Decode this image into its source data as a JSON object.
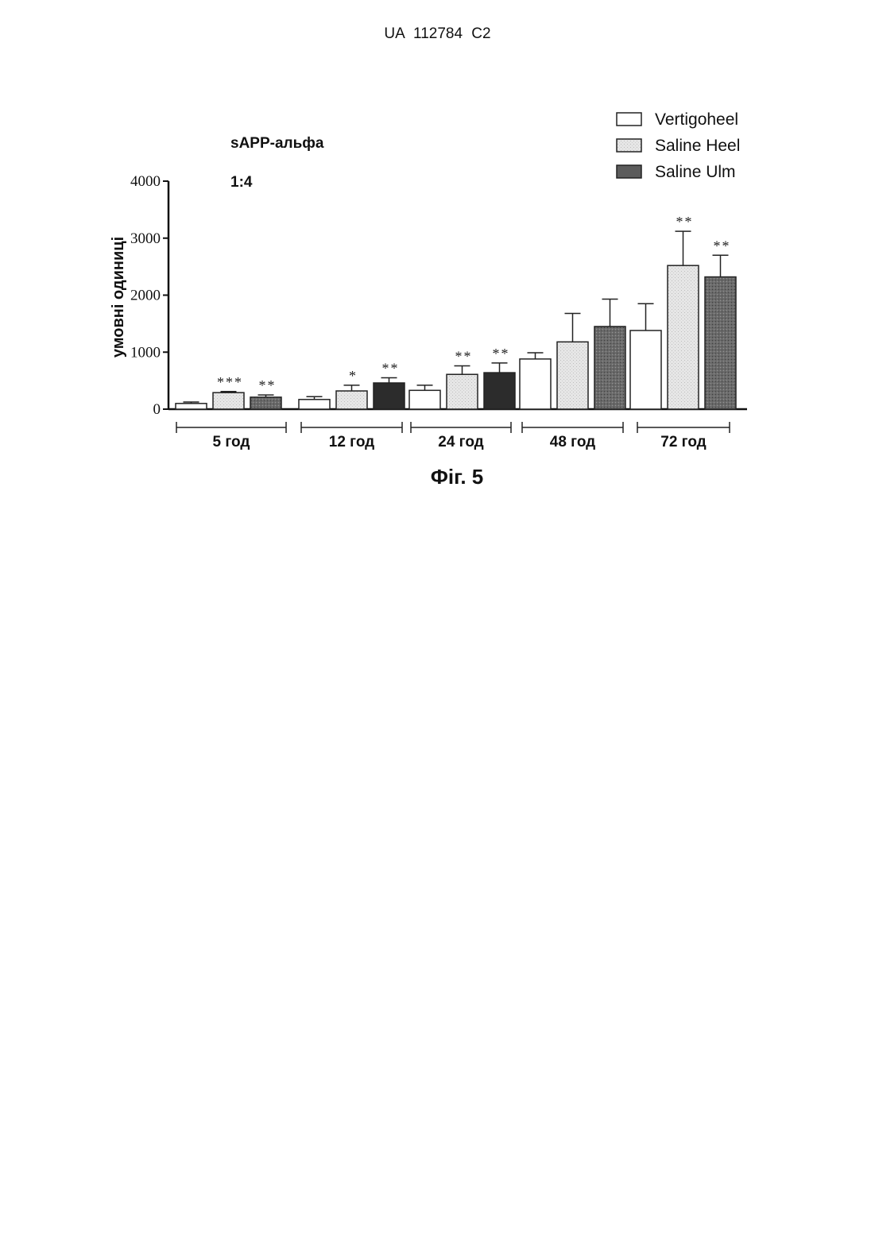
{
  "header": {
    "doc_id": "UA   112784   C2"
  },
  "caption": "Фіг. 5",
  "colors": {
    "Vertigoheel": "#ffffff",
    "Saline Heel": "#e3e3e3",
    "Saline Ulm": "#5c5c5c",
    "Saline Ulm (12/24 год)": "#2c2c2c",
    "axis": "#111111"
  },
  "chart_data": {
    "type": "bar",
    "title": "sAPP-альфа",
    "subtitle": "1:4",
    "ylabel": "умовні одиниці",
    "xlabel": "",
    "ylim": [
      0,
      4000
    ],
    "yticks": [
      "0",
      "1000",
      "2000",
      "3000",
      "4000"
    ],
    "categories": [
      "5 год",
      "12 год",
      "24 год",
      "48 год",
      "72 год"
    ],
    "legend_position": "top-right",
    "series": [
      {
        "name": "Vertigoheel",
        "values": [
          100,
          170,
          330,
          880,
          1380
        ],
        "errors": [
          25,
          50,
          90,
          110,
          470
        ],
        "annotations": [
          "",
          "",
          "",
          "",
          ""
        ]
      },
      {
        "name": "Saline Heel",
        "values": [
          290,
          320,
          610,
          1180,
          2520
        ],
        "errors": [
          20,
          100,
          150,
          500,
          600
        ],
        "annotations": [
          "***",
          "*",
          "**",
          "",
          "**"
        ]
      },
      {
        "name": "Saline Ulm",
        "values": [
          210,
          460,
          640,
          1450,
          2320
        ],
        "errors": [
          40,
          90,
          170,
          480,
          380
        ],
        "annotations": [
          "**",
          "**",
          "**",
          "",
          "**"
        ]
      }
    ]
  }
}
